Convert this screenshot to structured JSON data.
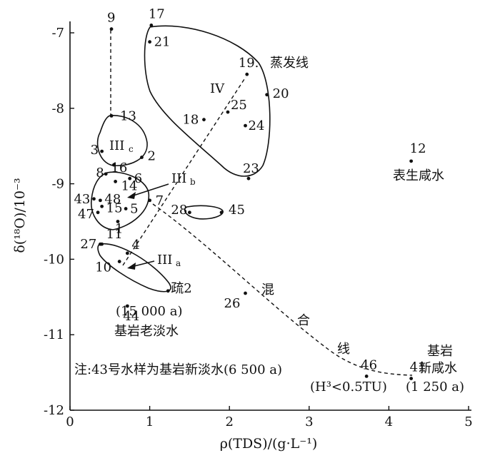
{
  "chart_data": {
    "type": "scatter",
    "xlabel": "ρ(TDS)/(g·L⁻¹)",
    "ylabel": "δ(¹⁸O)/10⁻³",
    "xlim": [
      0,
      5
    ],
    "ylim": [
      -12,
      -6.8
    ],
    "x_ticks": [
      0,
      1,
      2,
      3,
      4,
      5
    ],
    "y_ticks": [
      -12,
      -11,
      -10,
      -9,
      -8,
      -7
    ],
    "grid": false,
    "points": [
      {
        "label": "9",
        "x": 0.52,
        "y": -6.95
      },
      {
        "label": "17",
        "x": 1.02,
        "y": -6.9
      },
      {
        "label": "21",
        "x": 1.0,
        "y": -7.12
      },
      {
        "label": "19.",
        "x": 2.22,
        "y": -7.55
      },
      {
        "label": "20",
        "x": 2.47,
        "y": -7.82
      },
      {
        "label": "25",
        "x": 1.98,
        "y": -8.05
      },
      {
        "label": "24",
        "x": 2.2,
        "y": -8.23
      },
      {
        "label": "18",
        "x": 1.68,
        "y": -8.15
      },
      {
        "label": "23",
        "x": 2.24,
        "y": -8.93
      },
      {
        "label": "13",
        "x": 0.52,
        "y": -8.1
      },
      {
        "label": "3",
        "x": 0.4,
        "y": -8.57
      },
      {
        "label": "16",
        "x": 0.55,
        "y": -8.75
      },
      {
        "label": "2",
        "x": 0.9,
        "y": -8.65
      },
      {
        "label": "8",
        "x": 0.45,
        "y": -8.87
      },
      {
        "label": "6",
        "x": 0.75,
        "y": -8.93
      },
      {
        "label": "14",
        "x": 0.57,
        "y": -8.97
      },
      {
        "label": "43",
        "x": 0.3,
        "y": -9.2
      },
      {
        "label": "48",
        "x": 0.38,
        "y": -9.22
      },
      {
        "label": "5",
        "x": 0.7,
        "y": -9.33
      },
      {
        "label": "7",
        "x": 1.0,
        "y": -9.22
      },
      {
        "label": "15",
        "x": 0.4,
        "y": -9.3
      },
      {
        "label": "47",
        "x": 0.35,
        "y": -9.38
      },
      {
        "label": "1",
        "x": 0.6,
        "y": -9.5
      },
      {
        "label": "28",
        "x": 1.5,
        "y": -9.38
      },
      {
        "label": "45",
        "x": 1.9,
        "y": -9.38
      },
      {
        "label": "11",
        "x": 0.4,
        "y": -9.8
      },
      {
        "label": "27",
        "x": 0.38,
        "y": -9.8
      },
      {
        "label": "4",
        "x": 0.72,
        "y": -9.92
      },
      {
        "label": "10",
        "x": 0.62,
        "y": -10.03
      },
      {
        "label": "疏2",
        "x": 1.23,
        "y": -10.42
      },
      {
        "label": "44",
        "x": 0.72,
        "y": -10.62
      },
      {
        "label": "26",
        "x": 2.2,
        "y": -10.45
      },
      {
        "label": "46",
        "x": 3.72,
        "y": -11.55
      },
      {
        "label": "41",
        "x": 4.28,
        "y": -11.58
      },
      {
        "label": "12",
        "x": 4.28,
        "y": -8.7
      }
    ],
    "line_labels": {
      "evaporation": "蒸发线",
      "mixing": [
        "混",
        "合",
        "线"
      ]
    },
    "region_labels": [
      "IV",
      "III",
      "c",
      "III",
      "b",
      "III",
      "a"
    ],
    "annotations": {
      "saline_surface": "表生咸水",
      "old_fresh_age": "(15 000 a)",
      "old_fresh": "基岩老淡水",
      "bedrock_saline_1": "基岩",
      "bedrock_saline_2": "新咸水",
      "tritium": "(H³<0.5TU)",
      "bedrock_age": "(1 250 a)",
      "note": "注:43号水样为基岩新淡水(6 500 a)"
    }
  }
}
